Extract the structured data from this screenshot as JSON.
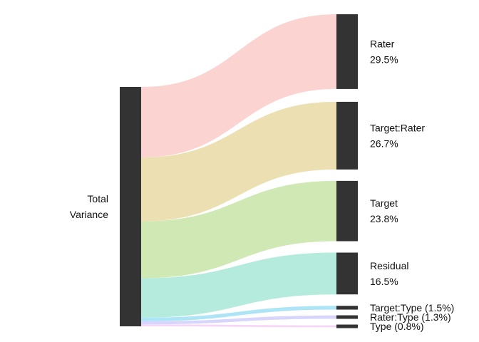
{
  "chart_data": {
    "type": "sankey",
    "source": {
      "label_lines": [
        "Total",
        "Variance"
      ],
      "color": "#333333"
    },
    "targets": [
      {
        "name": "Rater",
        "value": 29.5,
        "label_name": "Rater",
        "label_value": "29.5%",
        "layout": "two-line",
        "color": "#fbd4d1"
      },
      {
        "name": "Target:Rater",
        "value": 26.7,
        "label_name": "Target:Rater",
        "label_value": "26.7%",
        "layout": "two-line",
        "color": "#ecdfb2"
      },
      {
        "name": "Target",
        "value": 23.8,
        "label_name": "Target",
        "label_value": "23.8%",
        "layout": "two-line",
        "color": "#cfe8b4"
      },
      {
        "name": "Residual",
        "value": 16.5,
        "label_name": "Residual",
        "label_value": "16.5%",
        "layout": "two-line",
        "color": "#b4ebdd"
      },
      {
        "name": "Target:Type",
        "value": 1.5,
        "label": "Target:Type (1.5%)",
        "layout": "inline",
        "color": "#ade4f6"
      },
      {
        "name": "Rater:Type",
        "value": 1.3,
        "label": "Rater:Type (1.3%)",
        "layout": "inline",
        "color": "#d7d5fb"
      },
      {
        "name": "Type",
        "value": 0.8,
        "label": "Type (0.8%)",
        "layout": "inline",
        "color": "#f6d6f6"
      }
    ],
    "node_color": "#333333"
  }
}
